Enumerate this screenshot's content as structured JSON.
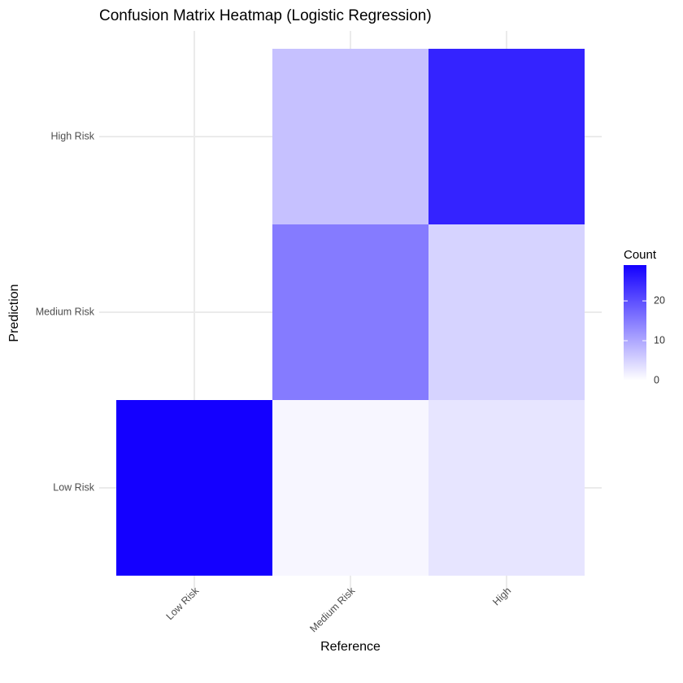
{
  "chart_data": {
    "type": "heatmap",
    "title": "Confusion Matrix Heatmap (Logistic Regression)",
    "xlabel": "Reference",
    "ylabel": "Prediction",
    "x_categories": [
      "Low Risk",
      "Medium Risk",
      "High"
    ],
    "y_categories": [
      "Low Risk",
      "Medium Risk",
      "High Risk"
    ],
    "cells": [
      {
        "x": "Low Risk",
        "y": "Low Risk",
        "value": 29
      },
      {
        "x": "Medium Risk",
        "y": "Low Risk",
        "value": 1
      },
      {
        "x": "High",
        "y": "Low Risk",
        "value": 3
      },
      {
        "x": "Medium Risk",
        "y": "Medium Risk",
        "value": 15
      },
      {
        "x": "High",
        "y": "Medium Risk",
        "value": 5
      },
      {
        "x": "Medium Risk",
        "y": "High Risk",
        "value": 7
      },
      {
        "x": "High",
        "y": "High Risk",
        "value": 25
      }
    ],
    "legend": {
      "title": "Count",
      "ticks": [
        0,
        10,
        20
      ],
      "min": 0,
      "max": 29,
      "position": "right"
    },
    "grid": true,
    "colors": {
      "low": "#ffffff",
      "high": "#1400ff",
      "grid": "#ebebeb"
    }
  }
}
